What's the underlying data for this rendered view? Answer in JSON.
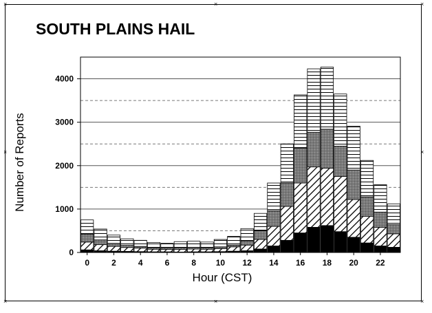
{
  "chart_data": {
    "type": "bar",
    "stacked": true,
    "title": "SOUTH PLAINS HAIL",
    "xlabel": "Hour (CST)",
    "ylabel": "Number of Reports",
    "ylim": [
      0,
      4500
    ],
    "yticks": [
      0,
      1000,
      2000,
      3000,
      4000
    ],
    "xticks": [
      0,
      2,
      4,
      6,
      8,
      10,
      12,
      14,
      16,
      18,
      20,
      22
    ],
    "grid": "horizontal lines: solid at major ticks, dashed at half-ticks",
    "legend": "none",
    "categories": [
      0,
      1,
      2,
      3,
      4,
      5,
      6,
      7,
      8,
      9,
      10,
      11,
      12,
      13,
      14,
      15,
      16,
      17,
      18,
      19,
      20,
      21,
      22,
      23
    ],
    "series": [
      {
        "fill": "solid-black",
        "values": [
          60,
          40,
          30,
          25,
          20,
          15,
          15,
          10,
          15,
          15,
          20,
          30,
          40,
          80,
          150,
          280,
          450,
          580,
          620,
          480,
          350,
          220,
          150,
          120
        ]
      },
      {
        "fill": "diagonal-hatch",
        "values": [
          180,
          140,
          110,
          90,
          80,
          60,
          55,
          60,
          65,
          60,
          70,
          100,
          130,
          220,
          450,
          780,
          1150,
          1390,
          1320,
          1270,
          870,
          610,
          430,
          310
        ]
      },
      {
        "fill": "gray-dotted",
        "values": [
          180,
          110,
          70,
          50,
          40,
          35,
          30,
          40,
          40,
          35,
          40,
          40,
          100,
          200,
          360,
          540,
          800,
          800,
          900,
          700,
          680,
          450,
          350,
          210
        ]
      },
      {
        "fill": "horizontal-lines",
        "values": [
          330,
          250,
          190,
          150,
          140,
          120,
          110,
          140,
          140,
          130,
          170,
          200,
          280,
          400,
          640,
          900,
          1230,
          1460,
          1430,
          1200,
          1010,
          840,
          630,
          480
        ]
      }
    ]
  }
}
